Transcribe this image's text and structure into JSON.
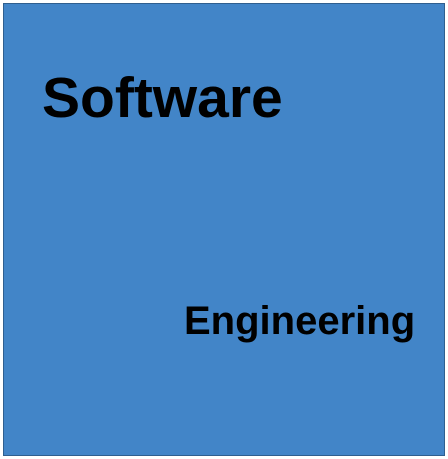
{
  "panel": {
    "background_color": "#4285c8",
    "word_primary": "Software",
    "word_secondary": "Engineering",
    "text_color": "#000000"
  }
}
